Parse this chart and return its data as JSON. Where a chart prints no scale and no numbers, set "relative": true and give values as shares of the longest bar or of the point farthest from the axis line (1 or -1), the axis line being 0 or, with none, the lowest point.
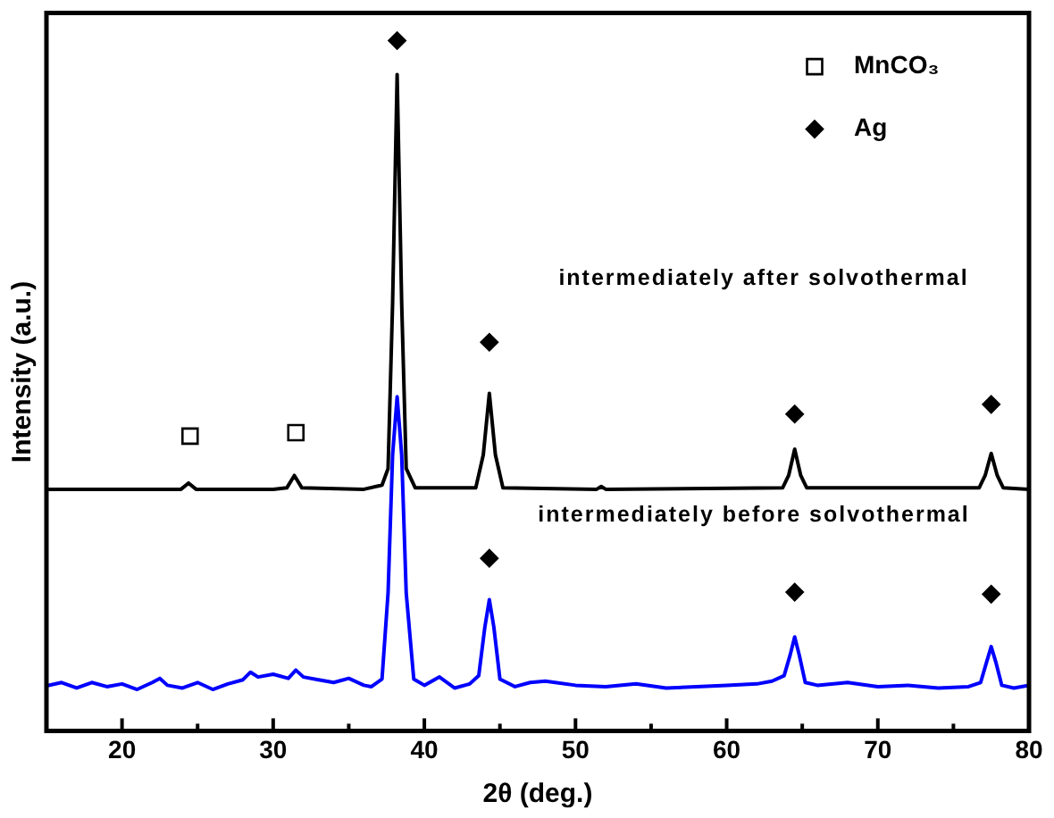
{
  "chart_data": {
    "type": "line",
    "xlabel": "2θ (deg.)",
    "ylabel": "Intensity (a.u.)",
    "relative": true,
    "xlim": [
      15,
      80
    ],
    "xticks": [
      20,
      {
        "value": 25,
        "label": null
      },
      30,
      {
        "value": 35,
        "label": null
      },
      40,
      {
        "value": 45,
        "label": null
      },
      50,
      {
        "value": 55,
        "label": null
      },
      60,
      {
        "value": 65,
        "label": null
      },
      70,
      {
        "value": 75,
        "label": null
      },
      80
    ],
    "legend": "top right",
    "marker": "none",
    "line_style": "solid",
    "annotations": [
      "intermediately after solvothermal",
      "intermediately before solvothermal"
    ],
    "series": [
      {
        "color": "#000000",
        "x": [
          15,
          20,
          23.9,
          24.4,
          24.9,
          30,
          30.9,
          31.4,
          31.9,
          36,
          37.2,
          37.6,
          37.9,
          38.2,
          38.5,
          38.8,
          39.4,
          43.4,
          43.9,
          44.3,
          44.7,
          45.2,
          51.4,
          51.7,
          52,
          63.7,
          64.1,
          64.5,
          64.9,
          65.3,
          76.7,
          77.1,
          77.5,
          77.9,
          78.3,
          80
        ],
        "values": [
          0.35,
          0.35,
          0.35,
          0.359,
          0.35,
          0.35,
          0.352,
          0.37,
          0.352,
          0.35,
          0.356,
          0.38,
          0.62,
          0.951,
          0.62,
          0.38,
          0.352,
          0.352,
          0.4,
          0.489,
          0.4,
          0.352,
          0.35,
          0.354,
          0.35,
          0.352,
          0.37,
          0.408,
          0.37,
          0.352,
          0.352,
          0.37,
          0.402,
          0.37,
          0.352,
          0.35
        ]
      },
      {
        "color": "#0000ff",
        "x": [
          15,
          16,
          17,
          18,
          19,
          20,
          21,
          22,
          22.5,
          23,
          24,
          25,
          26,
          27,
          28,
          28.5,
          29,
          30,
          31,
          31.5,
          32,
          33,
          34,
          35,
          36,
          36.5,
          37.2,
          37.6,
          37.9,
          38.2,
          38.5,
          38.8,
          39.3,
          40,
          41,
          42,
          43,
          43.6,
          44,
          44.3,
          44.6,
          45,
          46,
          47,
          48,
          50,
          52,
          54,
          56,
          58,
          60,
          62,
          63,
          63.8,
          64.2,
          64.5,
          64.8,
          65.2,
          66,
          68,
          70,
          72,
          74,
          76,
          76.8,
          77.2,
          77.5,
          77.8,
          78.2,
          79,
          80
        ],
        "values": [
          0.065,
          0.07,
          0.062,
          0.07,
          0.064,
          0.068,
          0.06,
          0.07,
          0.076,
          0.066,
          0.062,
          0.07,
          0.06,
          0.068,
          0.074,
          0.085,
          0.078,
          0.082,
          0.076,
          0.088,
          0.078,
          0.074,
          0.07,
          0.076,
          0.066,
          0.064,
          0.075,
          0.2,
          0.4,
          0.484,
          0.4,
          0.2,
          0.075,
          0.066,
          0.078,
          0.062,
          0.068,
          0.08,
          0.15,
          0.19,
          0.15,
          0.075,
          0.064,
          0.07,
          0.072,
          0.066,
          0.064,
          0.068,
          0.062,
          0.064,
          0.066,
          0.068,
          0.072,
          0.08,
          0.11,
          0.136,
          0.11,
          0.07,
          0.066,
          0.07,
          0.064,
          0.066,
          0.062,
          0.064,
          0.07,
          0.1,
          0.122,
          0.1,
          0.066,
          0.062,
          0.066
        ]
      },
      {
        "type": "scatter",
        "name": "MnCO₃",
        "marker": "square",
        "color": "#000000",
        "x": [
          24.5,
          31.5
        ],
        "values": [
          0.427,
          0.432
        ]
      },
      {
        "type": "scatter",
        "name": "Ag",
        "marker": "diamond",
        "color": "#000000",
        "x": [
          38.2,
          44.3,
          64.5,
          77.5,
          44.3,
          64.5,
          77.5
        ],
        "values": [
          1.0,
          0.563,
          0.459,
          0.473,
          0.25,
          0.201,
          0.198
        ]
      }
    ]
  }
}
